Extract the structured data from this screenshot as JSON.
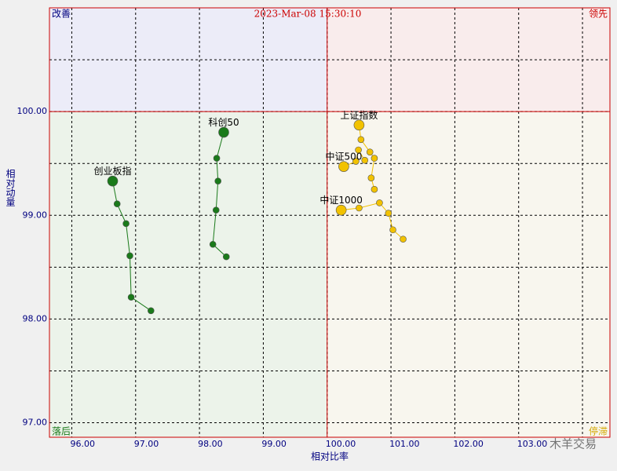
{
  "chart_data": {
    "type": "rrg",
    "title": "2023-Mar-08 15:30:10",
    "x_label": "相对比率",
    "y_label": "相对动量",
    "quadrants": {
      "top_left": "改善",
      "top_right": "领先",
      "bottom_left": "落后",
      "bottom_right": "停滞"
    },
    "watermark": "木羊交易",
    "xlim": [
      95.65,
      104.43
    ],
    "ylim": [
      96.86,
      101.0
    ],
    "xticks": [
      {
        "value": 96,
        "label": "96.00"
      },
      {
        "value": 97,
        "label": "97.00"
      },
      {
        "value": 98,
        "label": "98.00"
      },
      {
        "value": 99,
        "label": "99.00"
      },
      {
        "value": 100,
        "label": "100.00"
      },
      {
        "value": 101,
        "label": "101.00"
      },
      {
        "value": 102,
        "label": "102.00"
      },
      {
        "value": 103,
        "label": "103.00"
      },
      {
        "value": 104,
        "label": ""
      }
    ],
    "yticks": [
      {
        "value": 97,
        "label": "97.00"
      },
      {
        "value": 98,
        "label": "98.00"
      },
      {
        "value": 99,
        "label": "99.00"
      },
      {
        "value": 100,
        "label": "100.00"
      }
    ],
    "y_minor_ticks": [
      97.5,
      98.5,
      99.5,
      100.5
    ],
    "center_x": 100,
    "center_y": 100,
    "grid": true,
    "series": [
      {
        "name": "创业板指",
        "color": "#1a7a1a",
        "x": [
          97.24,
          96.93,
          96.91,
          96.85,
          96.71,
          96.64
        ],
        "values": [
          98.08,
          98.21,
          98.61,
          98.92,
          99.11,
          99.33
        ]
      },
      {
        "name": "科创50",
        "color": "#1a7a1a",
        "x": [
          98.42,
          98.21,
          98.26,
          98.29,
          98.27,
          98.38
        ],
        "values": [
          98.6,
          98.72,
          99.05,
          99.33,
          99.55,
          99.8
        ]
      },
      {
        "name": "上证指数",
        "color": "#f2c200",
        "x": [
          100.74,
          100.69,
          100.74,
          100.67,
          100.53,
          100.5
        ],
        "values": [
          99.25,
          99.36,
          99.55,
          99.61,
          99.73,
          99.87
        ]
      },
      {
        "name": "中证500",
        "color": "#f2c200",
        "x": [
          100.59,
          100.49,
          100.45,
          100.26
        ],
        "values": [
          99.53,
          99.63,
          99.52,
          99.47
        ]
      },
      {
        "name": "中证1000",
        "color": "#f2c200",
        "x": [
          101.19,
          101.03,
          100.96,
          100.82,
          100.5,
          100.22
        ],
        "values": [
          98.77,
          98.86,
          99.02,
          99.12,
          99.07,
          99.05
        ]
      }
    ]
  }
}
